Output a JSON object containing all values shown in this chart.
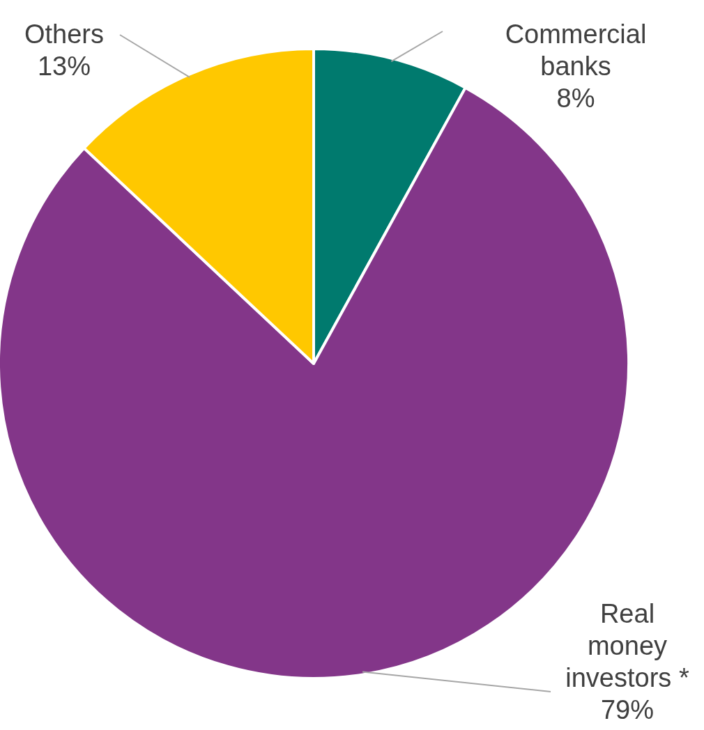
{
  "chart_data": {
    "type": "pie",
    "categories": [
      "Commercial banks",
      "Real money investors *",
      "Others"
    ],
    "values": [
      8,
      79,
      13
    ],
    "colors": [
      "#007a6e",
      "#833689",
      "#ffc800"
    ],
    "value_labels": [
      "8%",
      "79%",
      "13%"
    ]
  }
}
